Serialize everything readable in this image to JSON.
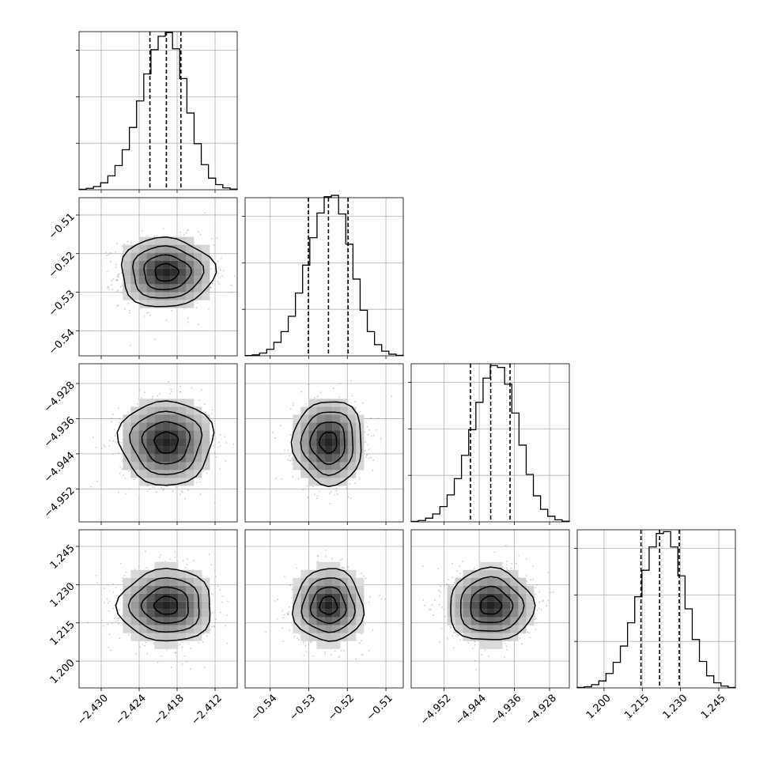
{
  "chart_data": {
    "type": "corner",
    "n_params": 4,
    "axis_labels": [
      "",
      "",
      "",
      ""
    ],
    "grid": true,
    "parameters": [
      {
        "range": [
          -2.4335,
          -2.4085
        ],
        "mean": -2.4197,
        "sigma": 0.0037,
        "quantiles": [
          -2.4223,
          -2.4197,
          -2.4174
        ],
        "ticks": [
          -2.43,
          -2.424,
          -2.418,
          -2.412
        ],
        "tick_labels": [
          "−2.430",
          "−2.424",
          "−2.418",
          "−2.412"
        ]
      },
      {
        "range": [
          -0.5465,
          -0.5055
        ],
        "mean": -0.5249,
        "sigma": 0.0045,
        "quantiles": [
          -0.5301,
          -0.5249,
          -0.5198
        ],
        "ticks": [
          -0.54,
          -0.53,
          -0.52,
          -0.51
        ],
        "tick_labels": [
          "−0.54",
          "−0.53",
          "−0.52",
          "−0.51"
        ]
      },
      {
        "range": [
          -4.9595,
          -4.9235
        ],
        "mean": -4.9414,
        "sigma": 0.0048,
        "quantiles": [
          -4.946,
          -4.9414,
          -4.937
        ],
        "ticks": [
          -4.952,
          -4.944,
          -4.936,
          -4.928
        ],
        "tick_labels": [
          "−4.952",
          "−4.944",
          "−4.936",
          "−4.928"
        ]
      },
      {
        "range": [
          1.1895,
          1.2515
        ],
        "mean": 1.2218,
        "sigma": 0.0071,
        "quantiles": [
          1.2145,
          1.2218,
          1.2295
        ],
        "ticks": [
          1.2,
          1.215,
          1.23,
          1.245
        ],
        "tick_labels": [
          "1.200",
          "1.215",
          "1.230",
          "1.245"
        ]
      }
    ],
    "histograms": [
      [
        2,
        6,
        14,
        30,
        60,
        104,
        172,
        268,
        382,
        498,
        602,
        660,
        676,
        606,
        478,
        330,
        198,
        108,
        50,
        22,
        8,
        3
      ],
      [
        1,
        4,
        12,
        28,
        58,
        104,
        170,
        270,
        390,
        508,
        614,
        684,
        690,
        610,
        480,
        330,
        196,
        104,
        48,
        20,
        7,
        2
      ],
      [
        2,
        6,
        16,
        34,
        66,
        116,
        186,
        286,
        396,
        514,
        618,
        672,
        664,
        592,
        468,
        330,
        204,
        112,
        54,
        24,
        9,
        3
      ],
      [
        2,
        5,
        14,
        30,
        62,
        110,
        180,
        280,
        392,
        506,
        606,
        664,
        672,
        606,
        482,
        340,
        208,
        114,
        52,
        22,
        8,
        2
      ]
    ],
    "hist_ylim": [
      0,
      680
    ],
    "hist_yticks": [
      200,
      400,
      600
    ],
    "contour_levels": [
      0.5,
      1.0,
      1.5,
      2.0
    ],
    "samples_per_panel": 900
  }
}
